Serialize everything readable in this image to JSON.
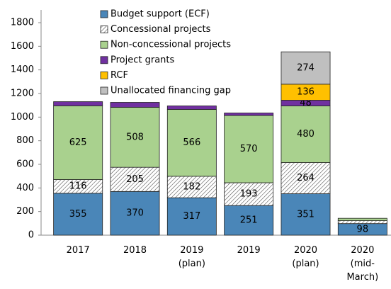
{
  "chart_data": {
    "type": "stacked_bar",
    "categories": [
      "2017",
      "2018",
      "2019\n(plan)",
      "2019",
      "2020\n(plan)",
      "2020\n(mid-\nMarch)"
    ],
    "series": [
      {
        "name": "Budget support (ECF)",
        "color": "#4a86b8",
        "values": [
          355,
          370,
          317,
          251,
          351,
          98
        ]
      },
      {
        "name": "Concessional projects",
        "color": "#ffffff",
        "pattern": "hatch",
        "values": [
          116,
          205,
          182,
          193,
          264,
          25
        ]
      },
      {
        "name": "Non-concessional projects",
        "color": "#a9d18e",
        "values": [
          625,
          508,
          566,
          570,
          480,
          20
        ]
      },
      {
        "name": "Project grants",
        "color": "#7030a0",
        "values": [
          35,
          42,
          30,
          21,
          48,
          null
        ]
      },
      {
        "name": "RCF",
        "color": "#ffc000",
        "values": [
          null,
          null,
          null,
          null,
          136,
          null
        ]
      },
      {
        "name": "Unallocated financing gap",
        "color": "#bfbfbf",
        "values": [
          null,
          null,
          null,
          null,
          274,
          null
        ]
      }
    ],
    "ylim": [
      0,
      1800
    ],
    "yticks": [
      0,
      200,
      400,
      600,
      800,
      1000,
      1200,
      1400,
      1600,
      1800
    ],
    "legend": "top-left"
  }
}
